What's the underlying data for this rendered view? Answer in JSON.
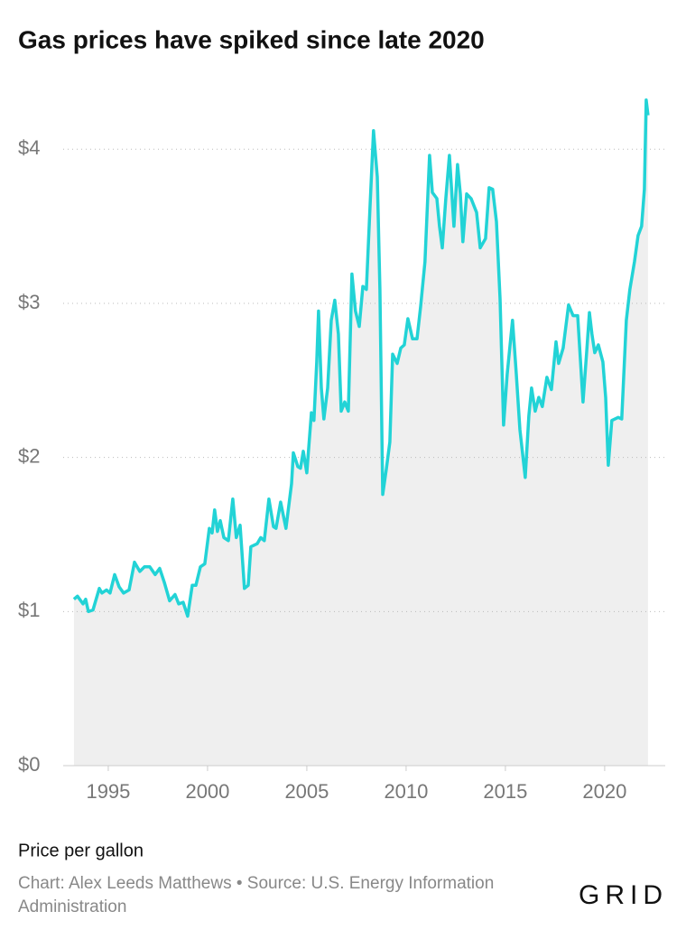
{
  "chart_data": {
    "type": "area-line",
    "title": "Gas prices have spiked since late 2020",
    "y_label": "Price per gallon",
    "source": "Chart: Alex Leeds Matthews • Source: U.S. Energy Information Administration",
    "brand": "GRID",
    "xlim": [
      1992.73,
      2023.05
    ],
    "xticks": [
      1995,
      2000,
      2005,
      2010,
      2015,
      2020
    ],
    "ylim": [
      0,
      4.4
    ],
    "yticks": [
      {
        "value": 0,
        "label": "$0"
      },
      {
        "value": 1,
        "label": "$1"
      },
      {
        "value": 2,
        "label": "$2"
      },
      {
        "value": 3,
        "label": "$3"
      },
      {
        "value": 4,
        "label": "$4"
      }
    ],
    "grid": true,
    "area_color": "#efefef",
    "series": [
      {
        "color": "#22d3d6",
        "x": [
          1993.27,
          1993.45,
          1993.73,
          1993.86,
          1994.0,
          1994.23,
          1994.55,
          1994.68,
          1994.91,
          1995.09,
          1995.32,
          1995.55,
          1995.77,
          1996.05,
          1996.32,
          1996.59,
          1996.82,
          1997.09,
          1997.36,
          1997.59,
          1997.82,
          1998.09,
          1998.36,
          1998.55,
          1998.77,
          1999.0,
          1999.23,
          1999.41,
          1999.64,
          1999.86,
          2000.09,
          2000.23,
          2000.36,
          2000.5,
          2000.64,
          2000.82,
          2001.05,
          2001.27,
          2001.45,
          2001.64,
          2001.86,
          2002.05,
          2002.18,
          2002.5,
          2002.68,
          2002.86,
          2003.09,
          2003.32,
          2003.45,
          2003.68,
          2003.95,
          2004.23,
          2004.32,
          2004.55,
          2004.68,
          2004.82,
          2005.0,
          2005.23,
          2005.36,
          2005.5,
          2005.59,
          2005.73,
          2005.86,
          2006.05,
          2006.23,
          2006.41,
          2006.59,
          2006.73,
          2006.91,
          2007.09,
          2007.27,
          2007.45,
          2007.64,
          2007.82,
          2008.0,
          2008.18,
          2008.36,
          2008.55,
          2008.68,
          2008.82,
          2009.0,
          2009.18,
          2009.32,
          2009.55,
          2009.73,
          2009.91,
          2010.09,
          2010.32,
          2010.55,
          2010.73,
          2010.95,
          2011.18,
          2011.32,
          2011.55,
          2011.68,
          2011.82,
          2012.0,
          2012.18,
          2012.41,
          2012.59,
          2012.73,
          2012.86,
          2013.05,
          2013.27,
          2013.55,
          2013.73,
          2014.0,
          2014.18,
          2014.36,
          2014.55,
          2014.73,
          2014.91,
          2015.09,
          2015.36,
          2015.55,
          2015.73,
          2016.0,
          2016.18,
          2016.32,
          2016.5,
          2016.68,
          2016.86,
          2017.09,
          2017.32,
          2017.55,
          2017.68,
          2017.91,
          2018.18,
          2018.41,
          2018.64,
          2018.91,
          2019.09,
          2019.23,
          2019.36,
          2019.5,
          2019.68,
          2019.91,
          2020.05,
          2020.18,
          2020.36,
          2020.68,
          2020.86,
          2021.09,
          2021.27,
          2021.5,
          2021.68,
          2021.86,
          2022.0,
          2022.09,
          2022.18
        ],
        "values": [
          1.08,
          1.1,
          1.05,
          1.08,
          1.0,
          1.01,
          1.15,
          1.12,
          1.14,
          1.12,
          1.24,
          1.16,
          1.12,
          1.14,
          1.32,
          1.26,
          1.29,
          1.29,
          1.24,
          1.28,
          1.19,
          1.07,
          1.11,
          1.05,
          1.06,
          0.97,
          1.17,
          1.17,
          1.29,
          1.31,
          1.54,
          1.51,
          1.66,
          1.52,
          1.59,
          1.48,
          1.46,
          1.73,
          1.48,
          1.56,
          1.15,
          1.17,
          1.42,
          1.44,
          1.48,
          1.46,
          1.73,
          1.55,
          1.54,
          1.71,
          1.54,
          1.83,
          2.03,
          1.94,
          1.93,
          2.04,
          1.9,
          2.29,
          2.24,
          2.62,
          2.95,
          2.45,
          2.25,
          2.45,
          2.89,
          3.02,
          2.8,
          2.3,
          2.36,
          2.3,
          3.19,
          2.95,
          2.85,
          3.11,
          3.09,
          3.62,
          4.12,
          3.82,
          3.09,
          1.76,
          1.92,
          2.1,
          2.67,
          2.61,
          2.71,
          2.73,
          2.9,
          2.77,
          2.77,
          2.98,
          3.27,
          3.96,
          3.72,
          3.68,
          3.5,
          3.36,
          3.68,
          3.96,
          3.5,
          3.9,
          3.71,
          3.4,
          3.71,
          3.68,
          3.59,
          3.36,
          3.42,
          3.75,
          3.74,
          3.53,
          3.03,
          2.21,
          2.54,
          2.89,
          2.54,
          2.18,
          1.87,
          2.27,
          2.45,
          2.3,
          2.39,
          2.33,
          2.52,
          2.44,
          2.75,
          2.61,
          2.71,
          2.99,
          2.92,
          2.92,
          2.36,
          2.68,
          2.94,
          2.8,
          2.68,
          2.73,
          2.62,
          2.39,
          1.95,
          2.24,
          2.26,
          2.25,
          2.89,
          3.09,
          3.27,
          3.44,
          3.5,
          3.74,
          4.32,
          4.22
        ]
      }
    ]
  }
}
